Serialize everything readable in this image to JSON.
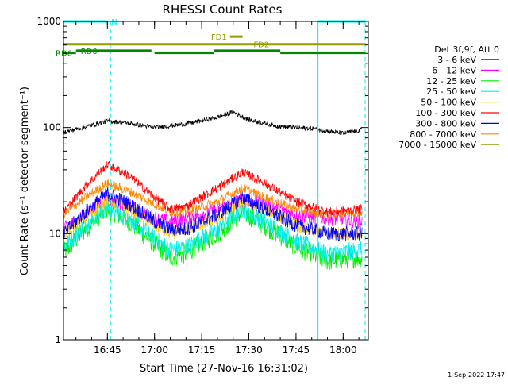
{
  "chart_data": {
    "type": "line",
    "title": "RHESSI Count Rates",
    "xlabel": "Start Time (27-Nov-16 16:31:02)",
    "ylabel": "Count Rate (s⁻¹ detector segment⁻¹)",
    "y_scale": "log",
    "ylim": [
      1,
      1000
    ],
    "y_ticks": [
      1,
      10,
      100,
      1000
    ],
    "y_tick_labels": [
      "1",
      "10",
      "100",
      "1000"
    ],
    "xlim": [
      "16:31:02",
      "18:08:00"
    ],
    "x_ticks": [
      "16:45",
      "17:00",
      "17:15",
      "17:30",
      "17:45",
      "18:00"
    ],
    "x_tick_labels": [
      "16:45",
      "17:00",
      "17:15",
      "17:30",
      "17:45",
      "18:00"
    ],
    "grid": false,
    "legend_title": "Det 3f,9f, Att 0",
    "legend_position": "right",
    "timestamp": "1-Sep-2022 17:47",
    "series": [
      {
        "name": "3 - 6 keV",
        "color": "#000000",
        "x": [
          "16:31",
          "16:40",
          "16:45",
          "16:50",
          "17:00",
          "17:10",
          "17:20",
          "17:25",
          "17:30",
          "17:40",
          "17:50",
          "18:00",
          "18:06"
        ],
        "values": [
          90,
          105,
          115,
          112,
          100,
          108,
          125,
          140,
          118,
          102,
          98,
          88,
          95
        ]
      },
      {
        "name": "6 - 12 keV",
        "color": "#ff00ff",
        "x": [
          "16:31",
          "16:38",
          "16:45",
          "16:52",
          "17:00",
          "17:05",
          "17:10",
          "17:20",
          "17:28",
          "17:35",
          "17:45",
          "17:55",
          "18:06"
        ],
        "values": [
          11,
          15,
          22,
          18,
          14,
          13,
          14,
          17,
          21,
          19,
          15,
          14,
          13
        ]
      },
      {
        "name": "12 - 25 keV",
        "color": "#00ee00",
        "x": [
          "16:31",
          "16:38",
          "16:45",
          "16:52",
          "17:00",
          "17:05",
          "17:10",
          "17:20",
          "17:28",
          "17:35",
          "17:45",
          "17:55",
          "18:06"
        ],
        "values": [
          6.5,
          11,
          17,
          13,
          8,
          6,
          6.5,
          10,
          16,
          12,
          7.5,
          5.5,
          6
        ]
      },
      {
        "name": "25 - 50 keV",
        "color": "#00eeee",
        "x": [
          "16:31",
          "16:38",
          "16:45",
          "16:52",
          "17:00",
          "17:05",
          "17:10",
          "17:20",
          "17:28",
          "17:35",
          "17:45",
          "17:55",
          "18:06"
        ],
        "values": [
          7.5,
          12,
          18,
          14,
          9,
          7,
          7.5,
          11,
          17,
          13,
          8.5,
          6.5,
          7
        ]
      },
      {
        "name": "50 - 100 keV",
        "color": "#ffcc00",
        "x": [
          "16:31",
          "16:38",
          "16:45",
          "16:52",
          "17:00",
          "17:05",
          "17:10",
          "17:20",
          "17:28",
          "17:35",
          "17:45",
          "17:55",
          "18:06"
        ],
        "values": [
          10,
          14,
          21,
          17,
          12,
          10,
          11,
          14,
          20,
          17,
          12,
          10,
          10
        ]
      },
      {
        "name": "100 - 300 keV",
        "color": "#ff0000",
        "x": [
          "16:31",
          "16:38",
          "16:45",
          "16:52",
          "17:00",
          "17:05",
          "17:10",
          "17:20",
          "17:28",
          "17:35",
          "17:45",
          "17:55",
          "18:06"
        ],
        "values": [
          16,
          28,
          45,
          35,
          22,
          17,
          18,
          27,
          38,
          30,
          20,
          16,
          17
        ]
      },
      {
        "name": "300 - 800 keV",
        "color": "#0000ff",
        "x": [
          "16:31",
          "16:38",
          "16:45",
          "16:52",
          "17:00",
          "17:05",
          "17:10",
          "17:20",
          "17:28",
          "17:35",
          "17:45",
          "17:55",
          "18:06"
        ],
        "values": [
          10,
          16,
          24,
          19,
          13,
          11,
          11,
          15,
          22,
          17,
          12,
          10,
          10
        ]
      },
      {
        "name": "800 - 7000 keV",
        "color": "#ff8800",
        "x": [
          "16:31",
          "16:38",
          "16:45",
          "16:52",
          "17:00",
          "17:05",
          "17:10",
          "17:20",
          "17:28",
          "17:35",
          "17:45",
          "17:55",
          "18:06"
        ],
        "values": [
          15,
          22,
          30,
          25,
          19,
          16,
          16,
          20,
          27,
          22,
          17,
          15,
          16
        ]
      },
      {
        "name": "7000 - 15000 keV",
        "color": "#999900",
        "x": [],
        "values": []
      }
    ],
    "annotation_bars": [
      {
        "label": "N",
        "color": "#00eeee",
        "x": [
          [
            "16:31",
            "16:45"
          ],
          [
            "17:52",
            "18:07"
          ]
        ],
        "level": 1000
      },
      {
        "label": "FD1",
        "color": "#999900",
        "x": [
          [
            "17:24",
            "17:28"
          ]
        ],
        "level": 720
      },
      {
        "label": "FD2",
        "color": "#999900",
        "x": [
          [
            "16:31",
            "18:07"
          ]
        ],
        "level": 610
      },
      {
        "label": "RD0",
        "color": "#008800",
        "x": [
          [
            "16:35",
            "16:59"
          ],
          [
            "17:19",
            "17:40"
          ]
        ],
        "level": 530
      },
      {
        "label": "RD6",
        "color": "#008800",
        "x": [
          [
            "16:31",
            "16:35"
          ],
          [
            "17:00",
            "17:19"
          ],
          [
            "17:40",
            "18:07"
          ]
        ],
        "level": 505
      }
    ],
    "vertical_lines": [
      {
        "x": "16:31",
        "style": "solid",
        "color": "#00eeee"
      },
      {
        "x": "16:46",
        "style": "dashed",
        "color": "#00eeee"
      },
      {
        "x": "17:52",
        "style": "solid",
        "color": "#00eeee"
      },
      {
        "x": "18:07",
        "style": "dashed",
        "color": "#00eeee"
      }
    ]
  }
}
